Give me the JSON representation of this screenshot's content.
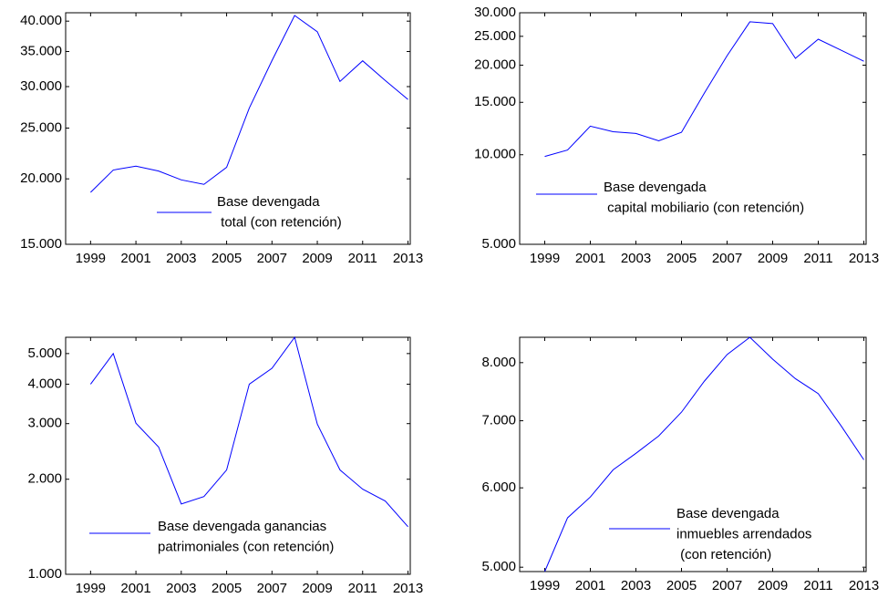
{
  "chart_data": [
    {
      "type": "line",
      "log_scale": true,
      "x": [
        1999,
        2000,
        2001,
        2002,
        2003,
        2004,
        2005,
        2006,
        2007,
        2008,
        2009,
        2010,
        2011,
        2012,
        2013
      ],
      "series": [
        {
          "name": "Base devengada\n total (con retención)",
          "color": "#0000ff",
          "values": [
            18850,
            20790,
            21150,
            20700,
            19910,
            19520,
            21040,
            27300,
            33630,
            41000,
            38180,
            30690,
            33600,
            30800,
            28350
          ]
        }
      ],
      "xlim": [
        1997.9,
        2013.1
      ],
      "xticks": [
        1999,
        2001,
        2003,
        2005,
        2007,
        2009,
        2011,
        2013
      ],
      "ylim": [
        15000,
        41500
      ],
      "yticks": [
        {
          "value": 15000,
          "label": "15.000"
        },
        {
          "value": 20000,
          "label": "20.000"
        },
        {
          "value": 25000,
          "label": "25.000"
        },
        {
          "value": 30000,
          "label": "30.000"
        },
        {
          "value": 35000,
          "label": "35.000"
        },
        {
          "value": 40000,
          "label": "40.000"
        }
      ]
    },
    {
      "type": "line",
      "log_scale": true,
      "x": [
        1999,
        2000,
        2001,
        2002,
        2003,
        2004,
        2005,
        2006,
        2007,
        2008,
        2009,
        2010,
        2011,
        2012,
        2013
      ],
      "series": [
        {
          "name": "Base devengada\n capital mobiliario (con retención)",
          "color": "#0000ff",
          "values": [
            9870,
            10370,
            12470,
            11950,
            11790,
            11140,
            11900,
            16100,
            21520,
            27970,
            27590,
            21080,
            24450,
            22450,
            20620
          ]
        }
      ],
      "xlim": [
        1997.9,
        2013.1
      ],
      "xticks": [
        1999,
        2001,
        2003,
        2005,
        2007,
        2009,
        2011,
        2013
      ],
      "ylim": [
        5000,
        30000
      ],
      "yticks": [
        {
          "value": 5000,
          "label": "5.000"
        },
        {
          "value": 10000,
          "label": "10.000"
        },
        {
          "value": 15000,
          "label": "15.000"
        },
        {
          "value": 20000,
          "label": "20.000"
        },
        {
          "value": 25000,
          "label": "25.000"
        },
        {
          "value": 30000,
          "label": "30.000"
        }
      ]
    },
    {
      "type": "line",
      "log_scale": true,
      "x": [
        1999,
        2000,
        2001,
        2002,
        2003,
        2004,
        2005,
        2006,
        2007,
        2008,
        2009,
        2010,
        2011,
        2012,
        2013
      ],
      "series": [
        {
          "name": "Base devengada ganancias\npatrimoniales (con retención)",
          "color": "#0000ff",
          "values": [
            4000,
            5000,
            3010,
            2530,
            1670,
            1763,
            2140,
            4000,
            4490,
            5630,
            2990,
            2140,
            1860,
            1706,
            1415
          ]
        }
      ],
      "xlim": [
        1997.9,
        2013.1
      ],
      "xticks": [
        1999,
        2001,
        2003,
        2005,
        2007,
        2009,
        2011,
        2013
      ],
      "ylim": [
        1000,
        5630
      ],
      "yticks": [
        {
          "value": 1000,
          "label": "1.000"
        },
        {
          "value": 2000,
          "label": "2.000"
        },
        {
          "value": 3000,
          "label": "3.000"
        },
        {
          "value": 4000,
          "label": "4.000"
        },
        {
          "value": 5000,
          "label": "5.000"
        }
      ]
    },
    {
      "type": "line",
      "log_scale": true,
      "x": [
        1999,
        2000,
        2001,
        2002,
        2003,
        2004,
        2005,
        2006,
        2007,
        2008,
        2009,
        2010,
        2011,
        2012,
        2013
      ],
      "series": [
        {
          "name": "Base devengada\ninmuebles arrendados\n (con retención)",
          "color": "#0000ff",
          "values": [
            4950,
            5600,
            5875,
            6254,
            6495,
            6760,
            7140,
            7665,
            8150,
            8480,
            8065,
            7710,
            7450,
            6920,
            6400
          ]
        }
      ],
      "xlim": [
        1997.9,
        2013.1
      ],
      "xticks": [
        1999,
        2001,
        2003,
        2005,
        2007,
        2009,
        2011,
        2013
      ],
      "ylim": [
        4950,
        8480
      ],
      "yticks": [
        {
          "value": 5000,
          "label": "5.000"
        },
        {
          "value": 6000,
          "label": "6.000"
        },
        {
          "value": 7000,
          "label": "7.000"
        },
        {
          "value": 8000,
          "label": "8.000"
        }
      ]
    }
  ]
}
